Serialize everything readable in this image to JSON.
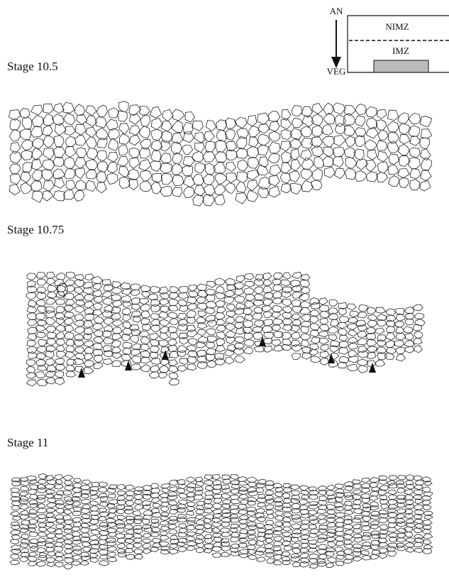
{
  "inset": {
    "top_label": "AN",
    "bottom_label": "VEG",
    "upper_region": "NIMZ",
    "lower_region": "IMZ"
  },
  "panels": [
    {
      "label": "Stage 10.5"
    },
    {
      "label": "Stage 10.75"
    },
    {
      "label": "Stage 11"
    }
  ]
}
